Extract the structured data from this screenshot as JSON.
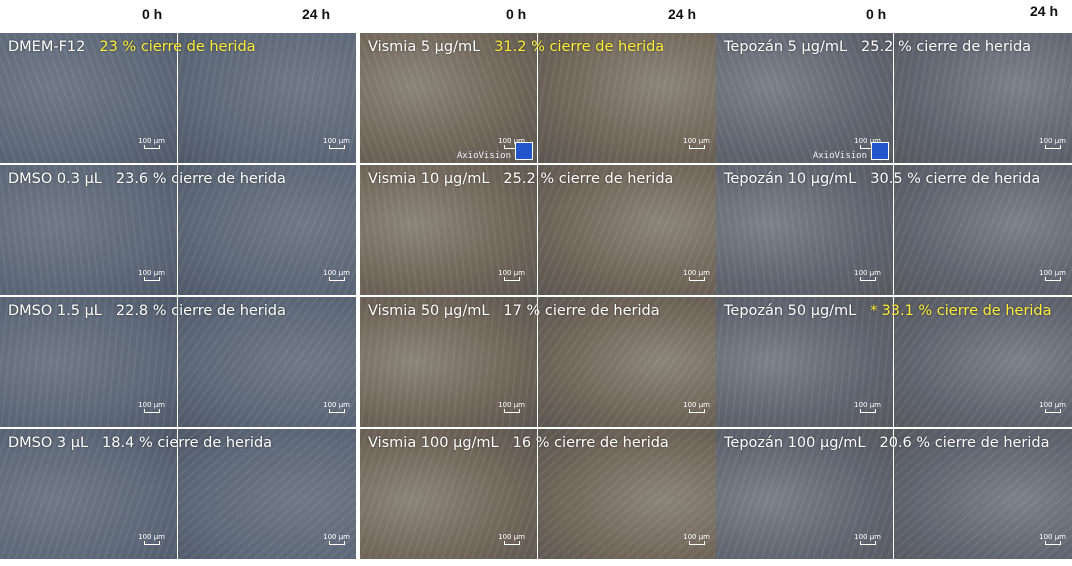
{
  "header": {
    "labels": [
      "0 h",
      "24 h",
      "0 h",
      "24 h",
      "0 h",
      "24 h"
    ]
  },
  "scale_bar": "100 µm",
  "rows": [
    [
      {
        "label": "DMEM-F12",
        "closure": "23 % cierre de herida",
        "highlight": true
      },
      {
        "label": "Vismia 5 µg/mL",
        "closure": "31.2 % cierre de herida",
        "highlight": true,
        "watermark": "AxioVision"
      },
      {
        "label": "Tepozán 5 µg/mL",
        "closure": "25.2 % cierre de herida",
        "watermark": "AxioVision"
      }
    ],
    [
      {
        "label": "DMSO 0.3 µL",
        "closure": "23.6 % cierre de herida"
      },
      {
        "label": "Vismia 10 µg/mL",
        "closure": "25.2 % cierre de herida"
      },
      {
        "label": "Tepozán 10 µg/mL",
        "closure": "30.5 % cierre de herida"
      }
    ],
    [
      {
        "label": "DMSO 1.5 µL",
        "closure": "22.8 % cierre de herida"
      },
      {
        "label": "Vismia 50 µg/mL",
        "closure": "17 % cierre de herida"
      },
      {
        "label": "Tepozán 50 µg/mL",
        "mark": "*",
        "closure": "33.1 % cierre de herida",
        "highlight": true
      }
    ],
    [
      {
        "label": "DMSO 3 µL",
        "closure": "18.4 % cierre de herida"
      },
      {
        "label": "Vismia 100 µg/mL",
        "closure": "16 % cierre de herida"
      },
      {
        "label": "Tepozán 100 µg/mL",
        "closure": "20.6 % cierre de herida"
      }
    ]
  ]
}
